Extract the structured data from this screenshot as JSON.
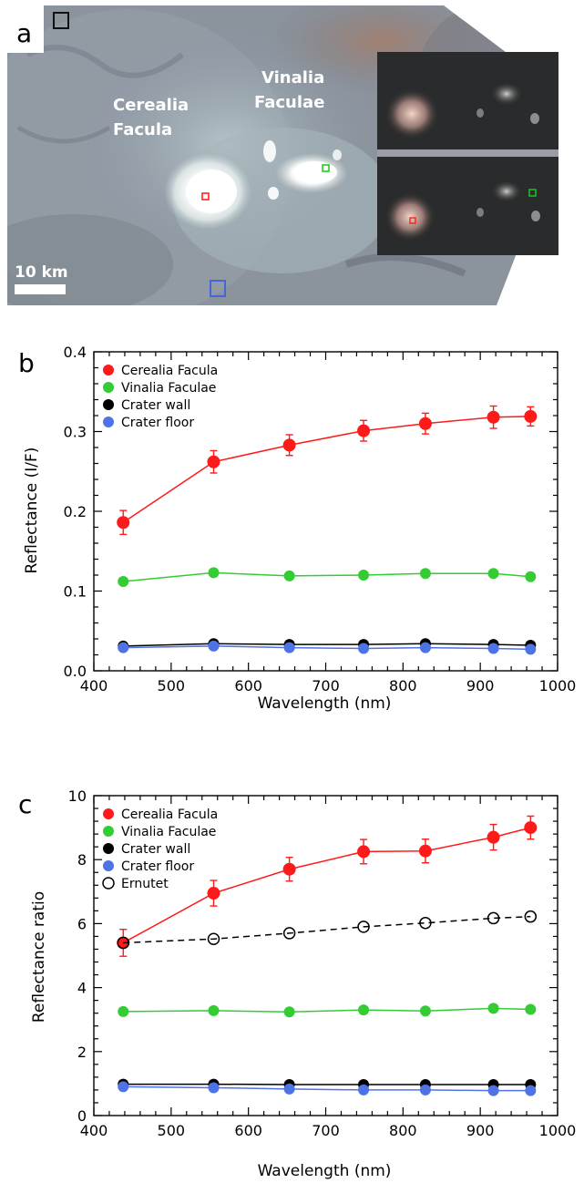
{
  "panel_a": {
    "panel_label": "a",
    "label_cerealia_line1": "Cerealia",
    "label_cerealia_line2": "Facula",
    "label_vinalia_line1": "Vinalia",
    "label_vinalia_line2": "Faculae",
    "scale_bar_label": "10 km",
    "colors": {
      "cerealia_box": "#ff2020",
      "vinalia_box": "#22cc22",
      "wall_box": "#111111",
      "floor_box": "#4466dd"
    }
  },
  "chart_data": [
    {
      "type": "line",
      "panel_label": "b",
      "xlabel": "Wavelength (nm)",
      "ylabel": "Reflectance (I/F)",
      "xlim": [
        400,
        1000
      ],
      "ylim": [
        0.0,
        0.4
      ],
      "xticks": [
        400,
        500,
        600,
        700,
        800,
        900,
        1000
      ],
      "xtick_labels": [
        "400",
        "500",
        "600",
        "700",
        "800",
        "900",
        "1000"
      ],
      "yticks": [
        0.0,
        0.1,
        0.2,
        0.3,
        0.4
      ],
      "ytick_labels": [
        "0.0",
        "0.1",
        "0.2",
        "0.3",
        "0.4"
      ],
      "legend_position": "top-left",
      "x": [
        438,
        555,
        653,
        749,
        829,
        917,
        965
      ],
      "series": [
        {
          "name": "Cerealia Facula",
          "color": "#ff1a1a",
          "values": [
            0.186,
            0.262,
            0.283,
            0.301,
            0.31,
            0.318,
            0.319
          ],
          "errors": [
            0.015,
            0.014,
            0.013,
            0.013,
            0.013,
            0.014,
            0.012
          ],
          "marker": "large-filled",
          "dashed": false
        },
        {
          "name": "Vinalia Faculae",
          "color": "#33cc33",
          "values": [
            0.112,
            0.123,
            0.119,
            0.12,
            0.122,
            0.122,
            0.118
          ],
          "errors": [],
          "marker": "filled",
          "dashed": false
        },
        {
          "name": "Crater wall",
          "color": "#000000",
          "values": [
            0.031,
            0.034,
            0.033,
            0.033,
            0.034,
            0.033,
            0.032
          ],
          "errors": [],
          "marker": "filled",
          "dashed": false
        },
        {
          "name": "Crater floor",
          "color": "#4d73e6",
          "values": [
            0.029,
            0.031,
            0.029,
            0.028,
            0.029,
            0.028,
            0.027
          ],
          "errors": [],
          "marker": "filled",
          "dashed": false
        }
      ]
    },
    {
      "type": "line",
      "panel_label": "c",
      "xlabel": "Wavelength (nm)",
      "ylabel": "Reflectance ratio",
      "xlim": [
        400,
        1000
      ],
      "ylim": [
        0,
        10
      ],
      "xticks": [
        400,
        500,
        600,
        700,
        800,
        900,
        1000
      ],
      "xtick_labels": [
        "400",
        "500",
        "600",
        "700",
        "800",
        "900",
        "1000"
      ],
      "yticks": [
        0,
        2,
        4,
        6,
        8,
        10
      ],
      "ytick_labels": [
        "0",
        "2",
        "4",
        "6",
        "8",
        "10"
      ],
      "legend_position": "top-left",
      "x": [
        438,
        555,
        653,
        749,
        829,
        917,
        965
      ],
      "series": [
        {
          "name": "Cerealia Facula",
          "color": "#ff1a1a",
          "values": [
            5.4,
            6.95,
            7.7,
            8.25,
            8.27,
            8.7,
            9.0
          ],
          "errors": [
            0.42,
            0.4,
            0.37,
            0.38,
            0.37,
            0.4,
            0.36
          ],
          "marker": "large-filled",
          "dashed": false
        },
        {
          "name": "Vinalia Faculae",
          "color": "#33cc33",
          "values": [
            3.25,
            3.28,
            3.24,
            3.3,
            3.27,
            3.35,
            3.32
          ],
          "errors": [],
          "marker": "filled",
          "dashed": false
        },
        {
          "name": "Crater wall",
          "color": "#000000",
          "values": [
            0.98,
            0.98,
            0.97,
            0.97,
            0.97,
            0.97,
            0.97
          ],
          "errors": [],
          "marker": "filled",
          "dashed": false
        },
        {
          "name": "Crater floor",
          "color": "#4d73e6",
          "values": [
            0.9,
            0.87,
            0.83,
            0.8,
            0.8,
            0.78,
            0.78
          ],
          "errors": [],
          "marker": "filled",
          "dashed": false
        },
        {
          "name": "Ernutet",
          "color": "#000000",
          "values": [
            5.4,
            5.52,
            5.7,
            5.9,
            6.02,
            6.17,
            6.22
          ],
          "errors": [],
          "marker": "open",
          "dashed": true
        }
      ]
    }
  ]
}
